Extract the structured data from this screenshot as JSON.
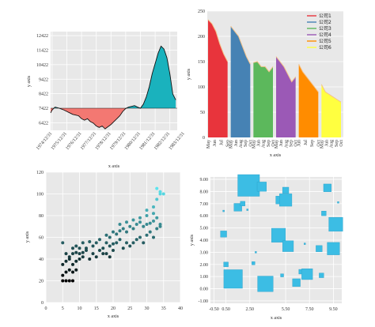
{
  "chart_data": [
    {
      "type": "area",
      "xlabel": "x axis",
      "ylabel": "y axis",
      "baseline": 7422,
      "yticks": [
        6422,
        7422,
        8422,
        9422,
        10422,
        11422,
        12422
      ],
      "ylim": [
        5900,
        12700
      ],
      "xticks": [
        "1974/12/31",
        "1975/12/31",
        "1976/12/31",
        "1977/12/31",
        "1978/12/31",
        "1979/12/31",
        "1980/12/31",
        "1981/12/31",
        "1982/12/31",
        "1983/12/31"
      ],
      "xlim": [
        1974.9,
        1983.5
      ],
      "above_color": "#1ab2bd",
      "below_color": "#f37872",
      "x": [
        1974.9,
        1975.0,
        1975.2,
        1975.4,
        1975.6,
        1975.8,
        1976.0,
        1976.2,
        1976.4,
        1976.6,
        1976.8,
        1977.0,
        1977.2,
        1977.4,
        1977.6,
        1977.8,
        1978.0,
        1978.2,
        1978.4,
        1978.6,
        1978.8,
        1979.0,
        1979.2,
        1979.4,
        1979.6,
        1979.8,
        1980.0,
        1980.2,
        1980.4,
        1980.6,
        1980.8,
        1981.0,
        1981.2,
        1981.4,
        1981.6,
        1981.8,
        1982.0,
        1982.2,
        1982.4,
        1982.6,
        1982.8,
        1983.0,
        1983.2,
        1983.4
      ],
      "y": [
        7100,
        7300,
        7500,
        7450,
        7380,
        7300,
        7200,
        7100,
        7000,
        6950,
        6900,
        6700,
        6600,
        6700,
        6500,
        6400,
        6200,
        6100,
        6200,
        6000,
        6150,
        6300,
        6500,
        6700,
        6900,
        7200,
        7400,
        7500,
        7550,
        7600,
        7500,
        7420,
        7700,
        8200,
        8900,
        9800,
        10500,
        11200,
        11700,
        11500,
        10900,
        9800,
        8400,
        8000
      ]
    },
    {
      "type": "area",
      "xlabel": "x axis",
      "ylabel": "y axis",
      "yticks": [
        0,
        50,
        100,
        150,
        200,
        250
      ],
      "ylim": [
        0,
        250
      ],
      "categories": [
        "May",
        "Jun",
        "Jul",
        "Aug",
        "Sep",
        "Oct"
      ],
      "series": [
        {
          "name": "公司1",
          "color": "#e8343c",
          "values": [
            233,
            225,
            210,
            185,
            165,
            150
          ]
        },
        {
          "name": "公司2",
          "color": "#4682b4",
          "values": [
            220,
            210,
            200,
            180,
            160,
            145
          ]
        },
        {
          "name": "公司3",
          "color": "#5cb85c",
          "values": [
            148,
            150,
            140,
            140,
            130,
            140
          ]
        },
        {
          "name": "公司4",
          "color": "#9b59b6",
          "values": [
            160,
            150,
            140,
            125,
            110,
            120
          ]
        },
        {
          "name": "公司5",
          "color": "#ff8c00",
          "values": [
            145,
            130,
            120,
            110,
            100,
            90
          ]
        },
        {
          "name": "公司6",
          "color": "#ffff40",
          "values": [
            105,
            90,
            85,
            80,
            75,
            70
          ]
        }
      ]
    },
    {
      "type": "scatter",
      "xlabel": "x axis",
      "ylabel": "y axis",
      "xticks": [
        0,
        5,
        10,
        15,
        20,
        25,
        30,
        35,
        40
      ],
      "yticks": [
        0,
        20,
        40,
        60,
        80,
        100,
        120
      ],
      "xlim": [
        0,
        40
      ],
      "ylim": [
        0,
        120
      ],
      "color_low": "#000000",
      "color_high": "#5ce3ee",
      "points": [
        [
          5,
          20
        ],
        [
          6,
          20
        ],
        [
          7,
          20
        ],
        [
          8,
          20
        ],
        [
          5,
          25
        ],
        [
          6,
          28
        ],
        [
          7,
          30
        ],
        [
          8,
          28
        ],
        [
          9,
          30
        ],
        [
          5,
          35
        ],
        [
          6,
          38
        ],
        [
          7,
          40
        ],
        [
          8,
          35
        ],
        [
          9,
          38
        ],
        [
          10,
          40
        ],
        [
          11,
          42
        ],
        [
          5,
          55
        ],
        [
          6,
          45
        ],
        [
          7,
          42
        ],
        [
          8,
          45
        ],
        [
          9,
          46
        ],
        [
          10,
          45
        ],
        [
          11,
          46
        ],
        [
          12,
          48
        ],
        [
          13,
          40
        ],
        [
          14,
          45
        ],
        [
          15,
          42
        ],
        [
          8,
          50
        ],
        [
          9,
          52
        ],
        [
          10,
          50
        ],
        [
          11,
          55
        ],
        [
          12,
          50
        ],
        [
          13,
          56
        ],
        [
          14,
          52
        ],
        [
          15,
          55
        ],
        [
          16,
          58
        ],
        [
          17,
          50
        ],
        [
          18,
          55
        ],
        [
          19,
          52
        ],
        [
          20,
          54
        ],
        [
          16,
          48
        ],
        [
          17,
          45
        ],
        [
          18,
          45
        ],
        [
          19,
          42
        ],
        [
          20,
          48
        ],
        [
          21,
          55
        ],
        [
          22,
          58
        ],
        [
          23,
          50
        ],
        [
          24,
          55
        ],
        [
          25,
          52
        ],
        [
          26,
          55
        ],
        [
          27,
          58
        ],
        [
          28,
          60
        ],
        [
          29,
          55
        ],
        [
          30,
          62
        ],
        [
          31,
          65
        ],
        [
          32,
          60
        ],
        [
          33,
          68
        ],
        [
          34,
          70
        ],
        [
          18,
          62
        ],
        [
          19,
          60
        ],
        [
          20,
          65
        ],
        [
          21,
          63
        ],
        [
          22,
          66
        ],
        [
          23,
          68
        ],
        [
          24,
          65
        ],
        [
          25,
          70
        ],
        [
          26,
          68
        ],
        [
          27,
          72
        ],
        [
          28,
          74
        ],
        [
          29,
          70
        ],
        [
          30,
          72
        ],
        [
          31,
          73
        ],
        [
          32,
          75
        ],
        [
          33,
          78
        ],
        [
          34,
          72
        ],
        [
          22,
          72
        ],
        [
          24,
          74
        ],
        [
          26,
          76
        ],
        [
          28,
          78
        ],
        [
          30,
          80
        ],
        [
          32,
          82
        ],
        [
          30,
          85
        ],
        [
          32,
          88
        ],
        [
          33,
          95
        ],
        [
          34,
          100
        ],
        [
          33,
          105
        ],
        [
          34,
          102
        ],
        [
          35,
          100
        ]
      ]
    },
    {
      "type": "scatter",
      "xlabel": "x axis",
      "ylabel": "y axis",
      "xticks": [
        "-0.50",
        "0.50",
        "2.50",
        "5.50",
        "7.50",
        "9.50"
      ],
      "xtick_values": [
        -0.5,
        0.5,
        2.5,
        5.5,
        7.5,
        9.5
      ],
      "yticks": [
        "-1.00",
        "0.00",
        "1.00",
        "2.00",
        "3.00",
        "4.00",
        "5.00",
        "6.00",
        "7.00",
        "8.00",
        "9.00"
      ],
      "ytick_values": [
        -1,
        0,
        1,
        2,
        3,
        4,
        5,
        6,
        7,
        8,
        9
      ],
      "xlim": [
        -0.8,
        10.2
      ],
      "ylim": [
        -1.2,
        9.2
      ],
      "marker": "square",
      "color": "#3cbde4",
      "points": [
        [
          2.4,
          8.5,
          1.4
        ],
        [
          3.5,
          8.4,
          0.6
        ],
        [
          5.5,
          8.1,
          0.4
        ],
        [
          9.0,
          8.3,
          0.5
        ],
        [
          5.0,
          7.3,
          0.5
        ],
        [
          5.5,
          7.3,
          0.8
        ],
        [
          1.5,
          6.7,
          0.5
        ],
        [
          1.9,
          7.0,
          0.3
        ],
        [
          0.3,
          6.4,
          0.1
        ],
        [
          9.9,
          7.1,
          0.1
        ],
        [
          2.3,
          6.5,
          0.1
        ],
        [
          8.7,
          6.2,
          0.3
        ],
        [
          9.7,
          5.3,
          0.9
        ],
        [
          0.3,
          4.5,
          0.4
        ],
        [
          4.9,
          4.4,
          0.9
        ],
        [
          5.7,
          3.5,
          0.7
        ],
        [
          8.3,
          3.3,
          0.4
        ],
        [
          9.5,
          3.3,
          0.8
        ],
        [
          7.1,
          3.7,
          0.1
        ],
        [
          0.5,
          2.0,
          0.3
        ],
        [
          2.8,
          2.1,
          0.2
        ],
        [
          3.0,
          3.0,
          0.1
        ],
        [
          1.1,
          0.8,
          1.2
        ],
        [
          3.8,
          0.4,
          1.0
        ],
        [
          6.4,
          0.5,
          0.5
        ],
        [
          5.2,
          1.1,
          0.2
        ],
        [
          6.8,
          1.4,
          0.3
        ],
        [
          7.3,
          1.2,
          0.7
        ],
        [
          8.5,
          1.1,
          0.3
        ]
      ]
    }
  ]
}
